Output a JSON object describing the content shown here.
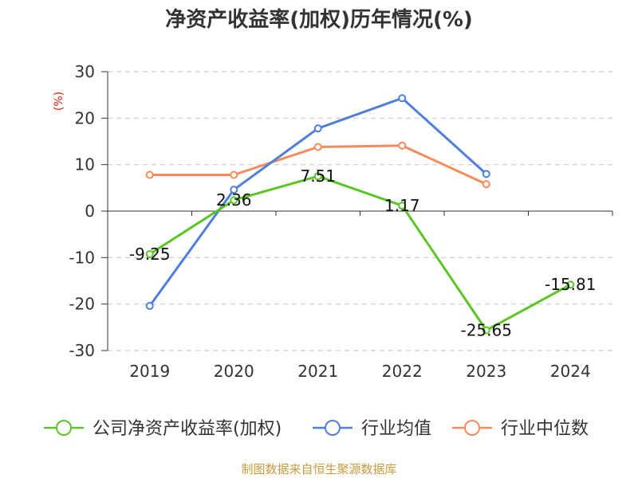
{
  "chart_data": {
    "type": "line",
    "title": "净资产收益率(加权)历年情况(%)",
    "ylabel": "(%)",
    "categories": [
      "2019",
      "2020",
      "2021",
      "2022",
      "2023",
      "2024"
    ],
    "ylim": [
      -30,
      30
    ],
    "yticks": [
      30,
      20,
      10,
      0,
      -10,
      -20,
      -30
    ],
    "grid": true,
    "legend_position": "bottom",
    "series": [
      {
        "name": "公司净资产收益率(加权)",
        "color": "#5cc524",
        "values": [
          -9.25,
          2.36,
          7.51,
          1.17,
          -25.65,
          -15.81
        ],
        "labels": [
          "-9.25",
          "2.36",
          "7.51",
          "1.17",
          "-25.65",
          "-15.81"
        ]
      },
      {
        "name": "行业均值",
        "color": "#4f7fd8",
        "values": [
          -20.4,
          4.6,
          17.8,
          24.3,
          8.0,
          null
        ]
      },
      {
        "name": "行业中位数",
        "color": "#f58a5a",
        "values": [
          7.8,
          7.8,
          13.8,
          14.1,
          5.8,
          null
        ]
      }
    ],
    "source": "制图数据来自恒生聚源数据库",
    "colors": {
      "title": "#333333",
      "ylabel": "#d81e06",
      "source": "#c89b3c",
      "grid": "#cccccc",
      "axis": "#333333"
    }
  }
}
